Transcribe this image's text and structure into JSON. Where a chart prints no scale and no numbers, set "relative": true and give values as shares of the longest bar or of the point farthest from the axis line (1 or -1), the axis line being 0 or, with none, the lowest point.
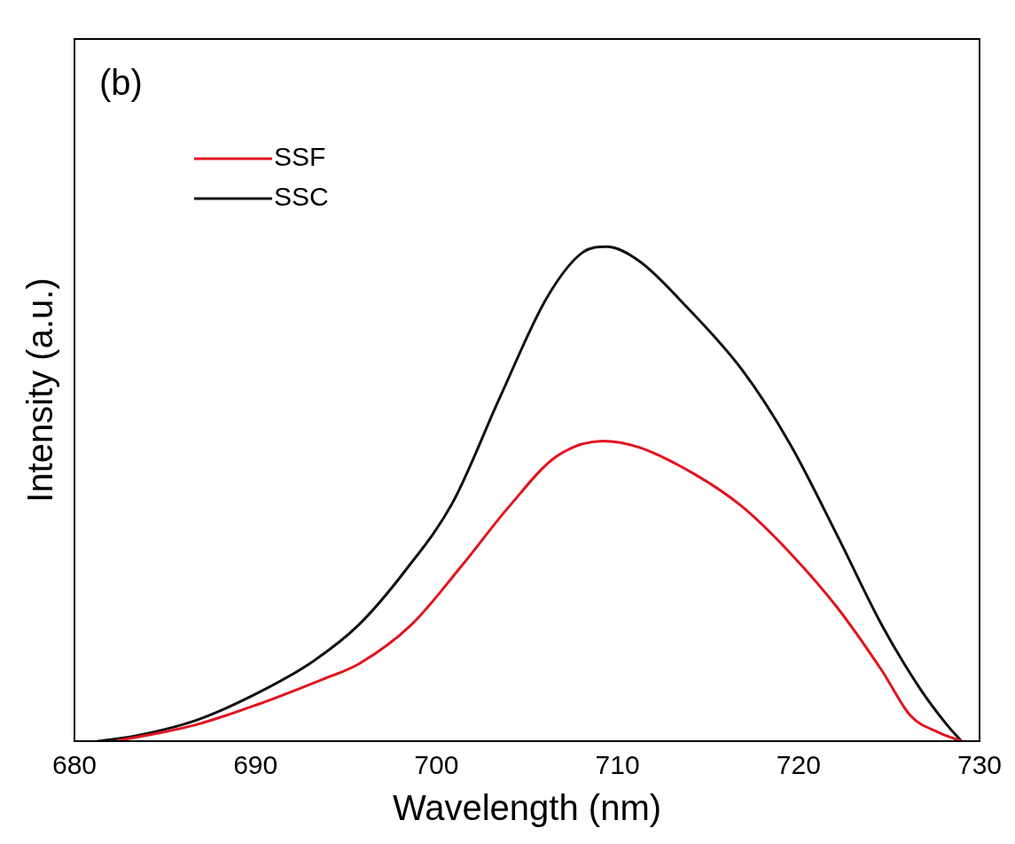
{
  "chart_data": {
    "type": "line",
    "relative": true,
    "xlabel": "Wavelength (nm)",
    "ylabel": "Intensity (a.u.)",
    "annotations": [
      "(b)"
    ],
    "xlim": [
      680,
      730
    ],
    "xticks": [
      680,
      690,
      700,
      710,
      720,
      730
    ],
    "legend": "top left",
    "grid": false,
    "marker": "none",
    "line_style": "solid",
    "series": [
      {
        "name": "SSF",
        "color": "#e0141e",
        "x": [
          682.3,
          686.7,
          690.1,
          693.7,
          695.7,
          698.6,
          701.4,
          704,
          706.6,
          709.2,
          711.2,
          714.3,
          716.9,
          719.5,
          722.1,
          724.6,
          726.2,
          727.7,
          729
        ],
        "values": [
          0,
          0.033,
          0.074,
          0.125,
          0.156,
          0.235,
          0.355,
          0.474,
          0.575,
          0.607,
          0.594,
          0.539,
          0.474,
          0.382,
          0.272,
          0.143,
          0.051,
          0.018,
          0
        ]
      },
      {
        "name": "SSC",
        "color": "#111111",
        "x": [
          681.3,
          683.4,
          686.7,
          690.1,
          693.2,
          695.7,
          698.3,
          700.9,
          703.5,
          706.1,
          708.1,
          709.4,
          711.2,
          713.8,
          716.9,
          719.5,
          722.1,
          724.6,
          726.7,
          728.2,
          729
        ],
        "values": [
          0,
          0.011,
          0.042,
          0.097,
          0.162,
          0.235,
          0.346,
          0.483,
          0.695,
          0.897,
          0.989,
          1,
          0.971,
          0.879,
          0.75,
          0.603,
          0.419,
          0.235,
          0.107,
          0.033,
          0
        ]
      }
    ]
  }
}
